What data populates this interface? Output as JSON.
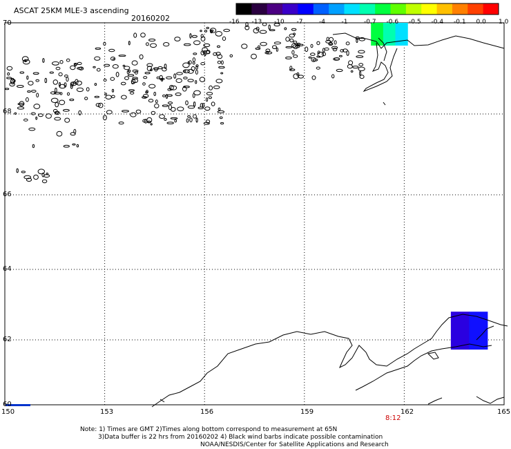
{
  "header": {
    "title": "ASCAT 25KM MLE-3 ascending",
    "date": "20160202"
  },
  "colorbar": {
    "ticks": [
      "-16",
      "-13",
      "-10",
      "-7",
      "-4",
      "-1",
      "-0.7",
      "-0.6",
      "-0.5",
      "-0.4",
      "-0.1",
      "0.0",
      "1.0"
    ],
    "colors": [
      "#000000",
      "#2a0040",
      "#4b0082",
      "#3a00c8",
      "#0000ff",
      "#0060ff",
      "#00a0ff",
      "#00e0ff",
      "#00ffb0",
      "#00ff40",
      "#60ff00",
      "#c0ff00",
      "#ffff00",
      "#ffc000",
      "#ff8000",
      "#ff4000",
      "#ff0000"
    ]
  },
  "axes": {
    "lat_labels": [
      "70",
      "68",
      "66",
      "64",
      "62",
      "60"
    ],
    "lon_labels": [
      "150",
      "153",
      "156",
      "159",
      "162",
      "165"
    ],
    "lat_range": [
      60,
      70
    ],
    "lon_range": [
      150,
      165
    ]
  },
  "time_label": "8:12",
  "notes": [
    "Note: 1) Times are GMT 2)Times along bottom correspond to measurement at 65N",
    "3)Data buffer is 22 hrs from 20160202 4) Black wind barbs indicate possible contamination",
    "NOAA/NESDIS/Center for Satellite Applications and Research"
  ],
  "swaths": [
    {
      "name": "north-swath",
      "lat_top": 70,
      "lat_bottom": 69.5,
      "lon_left": 161.0,
      "lon_right": 162.1,
      "colors": [
        "#00ff40",
        "#00ffb0",
        "#00e0ff"
      ]
    },
    {
      "name": "south-swath",
      "lat_top": 62.8,
      "lat_bottom": 61.7,
      "lon_left": 163.4,
      "lon_right": 164.5,
      "colors": [
        "#2a00e0",
        "#1010ff"
      ]
    }
  ]
}
